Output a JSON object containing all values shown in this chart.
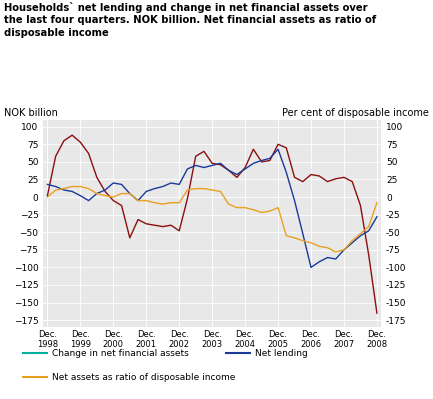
{
  "title_line1": "Households` net lending and change in net financial assets over",
  "title_line2": "the last four quarters. NOK billion. Net financial assets as ratio of",
  "title_line3": "disposable income",
  "ylabel_left": "NOK billion",
  "ylabel_right": "Per cent of disposable income",
  "xlim_labels": [
    "Dec.\n1998",
    "Dec.\n1999",
    "Dec.\n2000",
    "Dec.\n2001",
    "Dec.\n2002",
    "Dec.\n2003",
    "Dec.\n2004",
    "Dec.\n2005",
    "Dec.\n2006",
    "Dec.\n2007",
    "Dec.\n2008"
  ],
  "yticks": [
    -175,
    -150,
    -125,
    -100,
    -75,
    -50,
    -25,
    0,
    25,
    50,
    75,
    100
  ],
  "bg_color": "#e8e8e8",
  "dark_red_color": "#8b0f0f",
  "blue_color": "#1a3a9a",
  "orange_color": "#e8a020",
  "teal_color": "#00b0a0",
  "dec_positions": [
    0,
    4,
    8,
    12,
    16,
    20,
    24,
    28,
    32,
    36,
    40
  ],
  "change_net_financial": [
    2,
    58,
    80,
    88,
    78,
    62,
    28,
    8,
    -5,
    -12,
    -58,
    -32,
    -38,
    -40,
    -42,
    -40,
    -48,
    -2,
    58,
    65,
    48,
    46,
    38,
    28,
    42,
    68,
    50,
    52,
    75,
    70,
    28,
    22,
    32,
    30,
    22,
    26,
    28,
    22,
    -12,
    -82,
    -165
  ],
  "net_lending": [
    18,
    15,
    10,
    8,
    2,
    -5,
    5,
    10,
    20,
    18,
    5,
    -5,
    8,
    12,
    15,
    20,
    18,
    40,
    45,
    42,
    45,
    48,
    38,
    32,
    40,
    48,
    52,
    55,
    68,
    35,
    -5,
    -52,
    -100,
    -92,
    -86,
    -88,
    -75,
    -65,
    -55,
    -48,
    -28
  ],
  "net_assets_ratio": [
    0,
    10,
    12,
    15,
    15,
    12,
    5,
    2,
    0,
    5,
    5,
    -5,
    -5,
    -8,
    -10,
    -8,
    -8,
    10,
    12,
    12,
    10,
    8,
    -10,
    -15,
    -15,
    -18,
    -22,
    -20,
    -15,
    -55,
    -58,
    -62,
    -65,
    -70,
    -72,
    -78,
    -75,
    -62,
    -52,
    -42,
    -8
  ],
  "legend_labels": [
    "Change in net financial assets",
    "Net lending",
    "Net assets as ratio of disposable income"
  ],
  "quarters_n": 41
}
